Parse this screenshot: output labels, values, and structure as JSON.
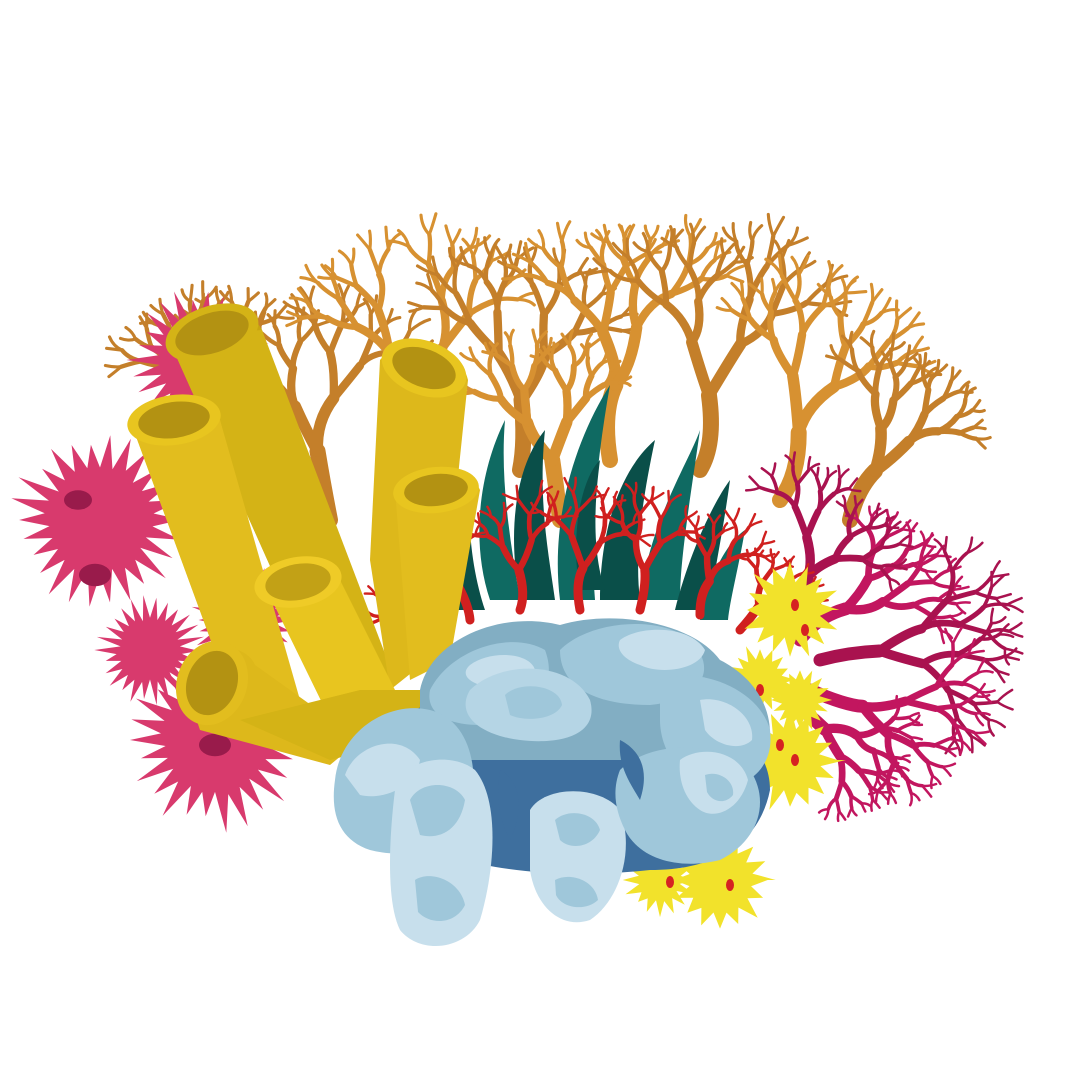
{
  "illustration": {
    "background": "#ffffff",
    "elements": [
      {
        "name": "orange-branching-coral",
        "color": "#D79131",
        "shade": "#C47F2A"
      },
      {
        "name": "magenta-sea-fan",
        "color": "#C2165F",
        "shade": "#A9124F"
      },
      {
        "name": "pink-anemone",
        "color": "#D83A6D",
        "shade": "#991B4B"
      },
      {
        "name": "yellow-tube-sponge",
        "color": "#E2BD1E",
        "shade": "#C9A511",
        "inner": "#B39212"
      },
      {
        "name": "green-sea-grass",
        "color": "#0F6A62",
        "shade": "#0A4F49"
      },
      {
        "name": "red-branching-coral",
        "color": "#D0201F"
      },
      {
        "name": "blue-brain-coral",
        "color": "#9FC7DA",
        "light": "#C7DFEC",
        "mid": "#82AEC3",
        "dark": "#3E6F9E"
      },
      {
        "name": "yellow-sea-urchin",
        "color": "#F2E22B",
        "spot": "#D62222"
      }
    ]
  }
}
